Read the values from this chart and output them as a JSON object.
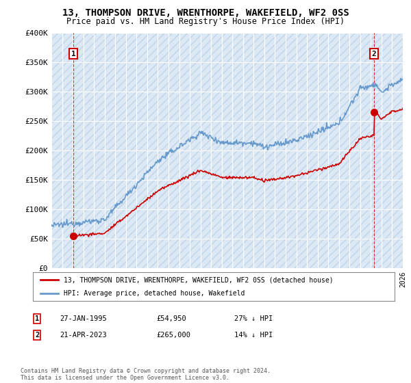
{
  "title": "13, THOMPSON DRIVE, WRENTHORPE, WAKEFIELD, WF2 0SS",
  "subtitle": "Price paid vs. HM Land Registry's House Price Index (HPI)",
  "legend_label_red": "13, THOMPSON DRIVE, WRENTHORPE, WAKEFIELD, WF2 0SS (detached house)",
  "legend_label_blue": "HPI: Average price, detached house, Wakefield",
  "marker1_date": "27-JAN-1995",
  "marker1_price": "£54,950",
  "marker1_hpi": "27% ↓ HPI",
  "marker1_x": 1995.07,
  "marker1_y": 54950,
  "marker2_date": "21-APR-2023",
  "marker2_price": "£265,000",
  "marker2_hpi": "14% ↓ HPI",
  "marker2_x": 2023.3,
  "marker2_y": 265000,
  "footer": "Contains HM Land Registry data © Crown copyright and database right 2024.\nThis data is licensed under the Open Government Licence v3.0.",
  "ylim": [
    0,
    400000
  ],
  "xlim_min": 1993,
  "xlim_max": 2026,
  "yticks": [
    0,
    50000,
    100000,
    150000,
    200000,
    250000,
    300000,
    350000,
    400000
  ],
  "ytick_labels": [
    "£0",
    "£50K",
    "£100K",
    "£150K",
    "£200K",
    "£250K",
    "£300K",
    "£350K",
    "£400K"
  ],
  "bg_color": "#ffffff",
  "plot_bg_color": "#dce9f5",
  "red_color": "#cc0000",
  "blue_color": "#6699cc",
  "grid_color": "#ffffff",
  "hatch_color": "#c0d4e8"
}
